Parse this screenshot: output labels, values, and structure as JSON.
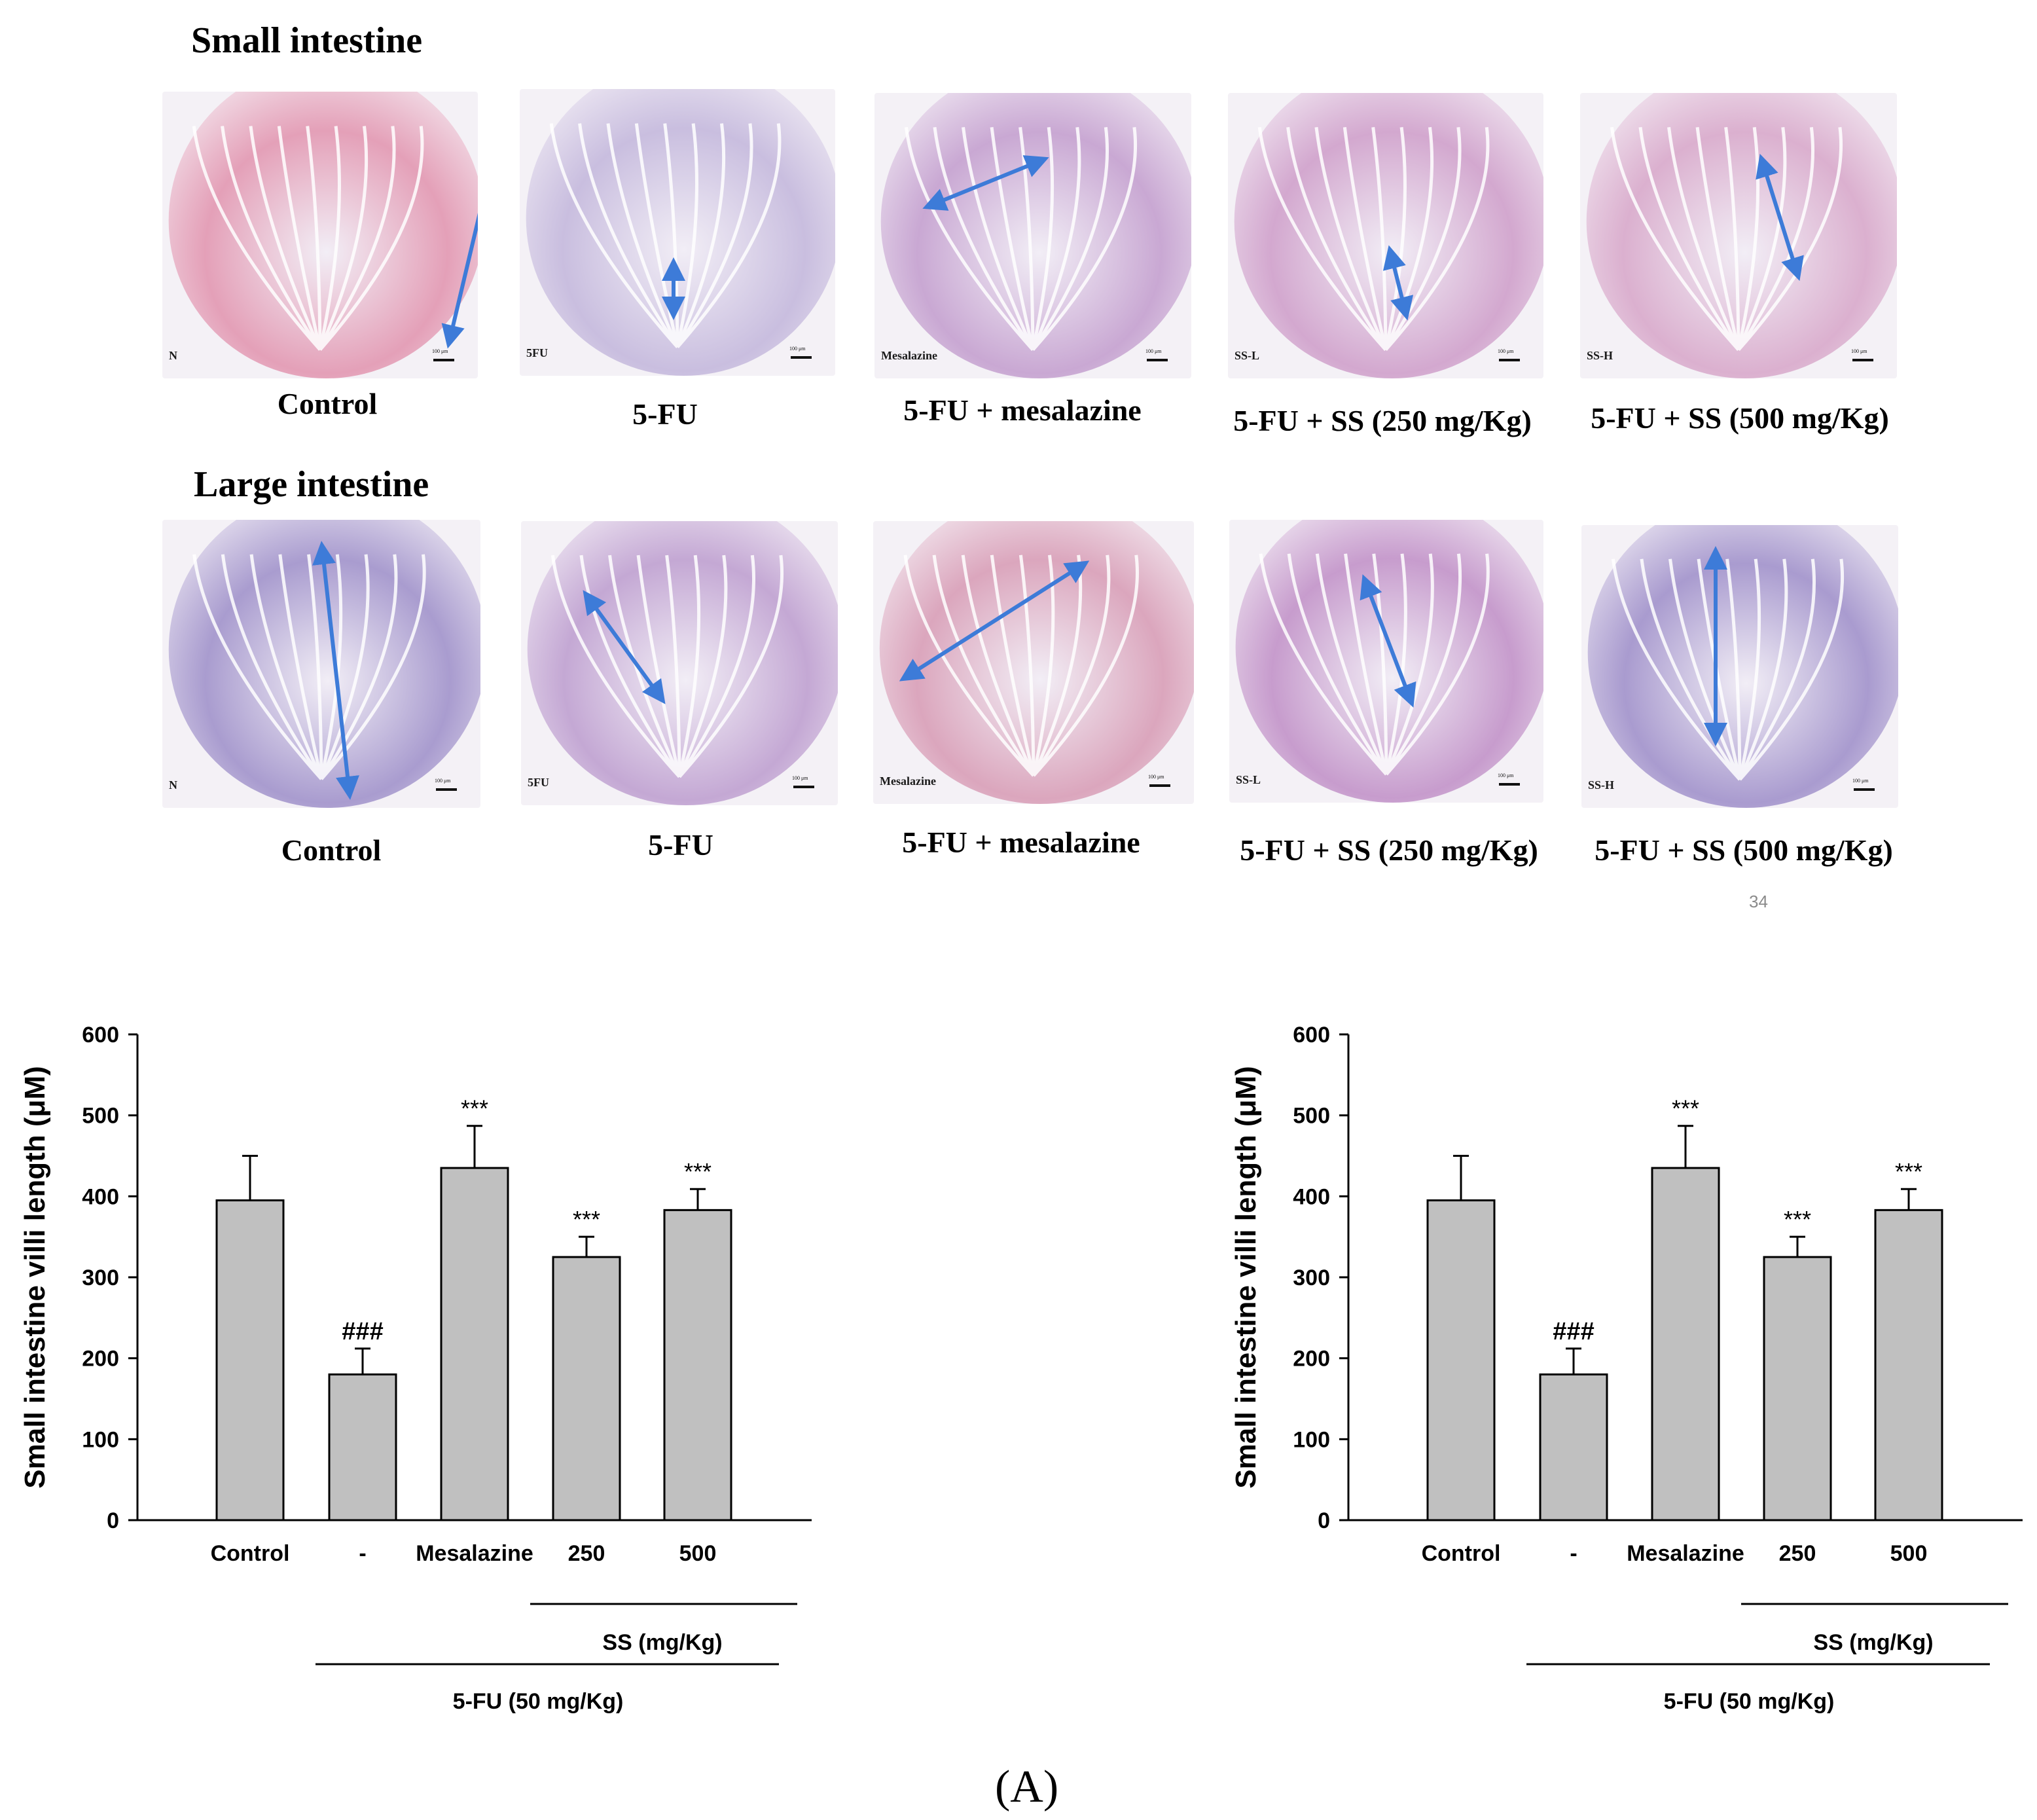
{
  "small_intestine": {
    "title": "Small intestine",
    "panels": [
      {
        "tag": "N",
        "scale": "100 μm",
        "caption": "Control",
        "tint": "#e4a0b8"
      },
      {
        "tag": "5FU",
        "scale": "100 μm",
        "caption": "5-FU",
        "tint": "#c9bedf"
      },
      {
        "tag": "Mesalazine",
        "scale": "100 μm",
        "caption": "5-FU + mesalazine",
        "tint": "#c9a8d3"
      },
      {
        "tag": "SS-L",
        "scale": "100 μm",
        "caption": "5-FU + SS (250 mg/Kg)",
        "tint": "#d3a8cf"
      },
      {
        "tag": "SS-H",
        "scale": "100 μm",
        "caption": "5-FU + SS (500 mg/Kg)",
        "tint": "#dbb0cf"
      }
    ]
  },
  "large_intestine": {
    "title": "Large intestine",
    "panels": [
      {
        "tag": "N",
        "scale": "100 μm",
        "caption": "Control",
        "tint": "#a99ccf"
      },
      {
        "tag": "5FU",
        "scale": "100 μm",
        "caption": "5-FU",
        "tint": "#c4a8d4"
      },
      {
        "tag": "Mesalazine",
        "scale": "100 μm",
        "caption": "5-FU + mesalazine",
        "tint": "#dba6bd"
      },
      {
        "tag": "SS-L",
        "scale": "100 μm",
        "caption": "5-FU + SS (250 mg/Kg)",
        "tint": "#c79ccd"
      },
      {
        "tag": "SS-H",
        "scale": "100 μm",
        "caption": "5-FU + SS (500 mg/Kg)",
        "tint": "#a99bcf"
      }
    ]
  },
  "page_number": "34",
  "figure_label": "(A)",
  "colors": {
    "bar_fill": "#c0c0c0",
    "arrow": "#3d7bd8"
  },
  "chart_data": [
    {
      "type": "bar",
      "ylabel": "Small intestine villi length (μM)",
      "xlabel": "",
      "ylim": [
        0,
        600
      ],
      "yticks": [
        0,
        100,
        200,
        300,
        400,
        500,
        600
      ],
      "categories": [
        "Control",
        "-",
        "Mesalazine",
        "250",
        "500"
      ],
      "values": [
        395,
        180,
        435,
        325,
        383
      ],
      "errors": [
        55,
        32,
        52,
        25,
        26
      ],
      "annotations": [
        "",
        "###",
        "***",
        "***",
        "***"
      ],
      "group_labels": {
        "ss": "SS (mg/Kg)",
        "fu": "5-FU (50 mg/Kg)"
      },
      "grid": false
    },
    {
      "type": "bar",
      "ylabel": "Small intestine villi length (μM)",
      "xlabel": "",
      "ylim": [
        0,
        600
      ],
      "yticks": [
        0,
        100,
        200,
        300,
        400,
        500,
        600
      ],
      "categories": [
        "Control",
        "-",
        "Mesalazine",
        "250",
        "500"
      ],
      "values": [
        395,
        180,
        435,
        325,
        383
      ],
      "errors": [
        55,
        32,
        52,
        25,
        26
      ],
      "annotations": [
        "",
        "###",
        "***",
        "***",
        "***"
      ],
      "group_labels": {
        "ss": "SS (mg/Kg)",
        "fu": "5-FU (50 mg/Kg)"
      },
      "grid": false
    }
  ]
}
